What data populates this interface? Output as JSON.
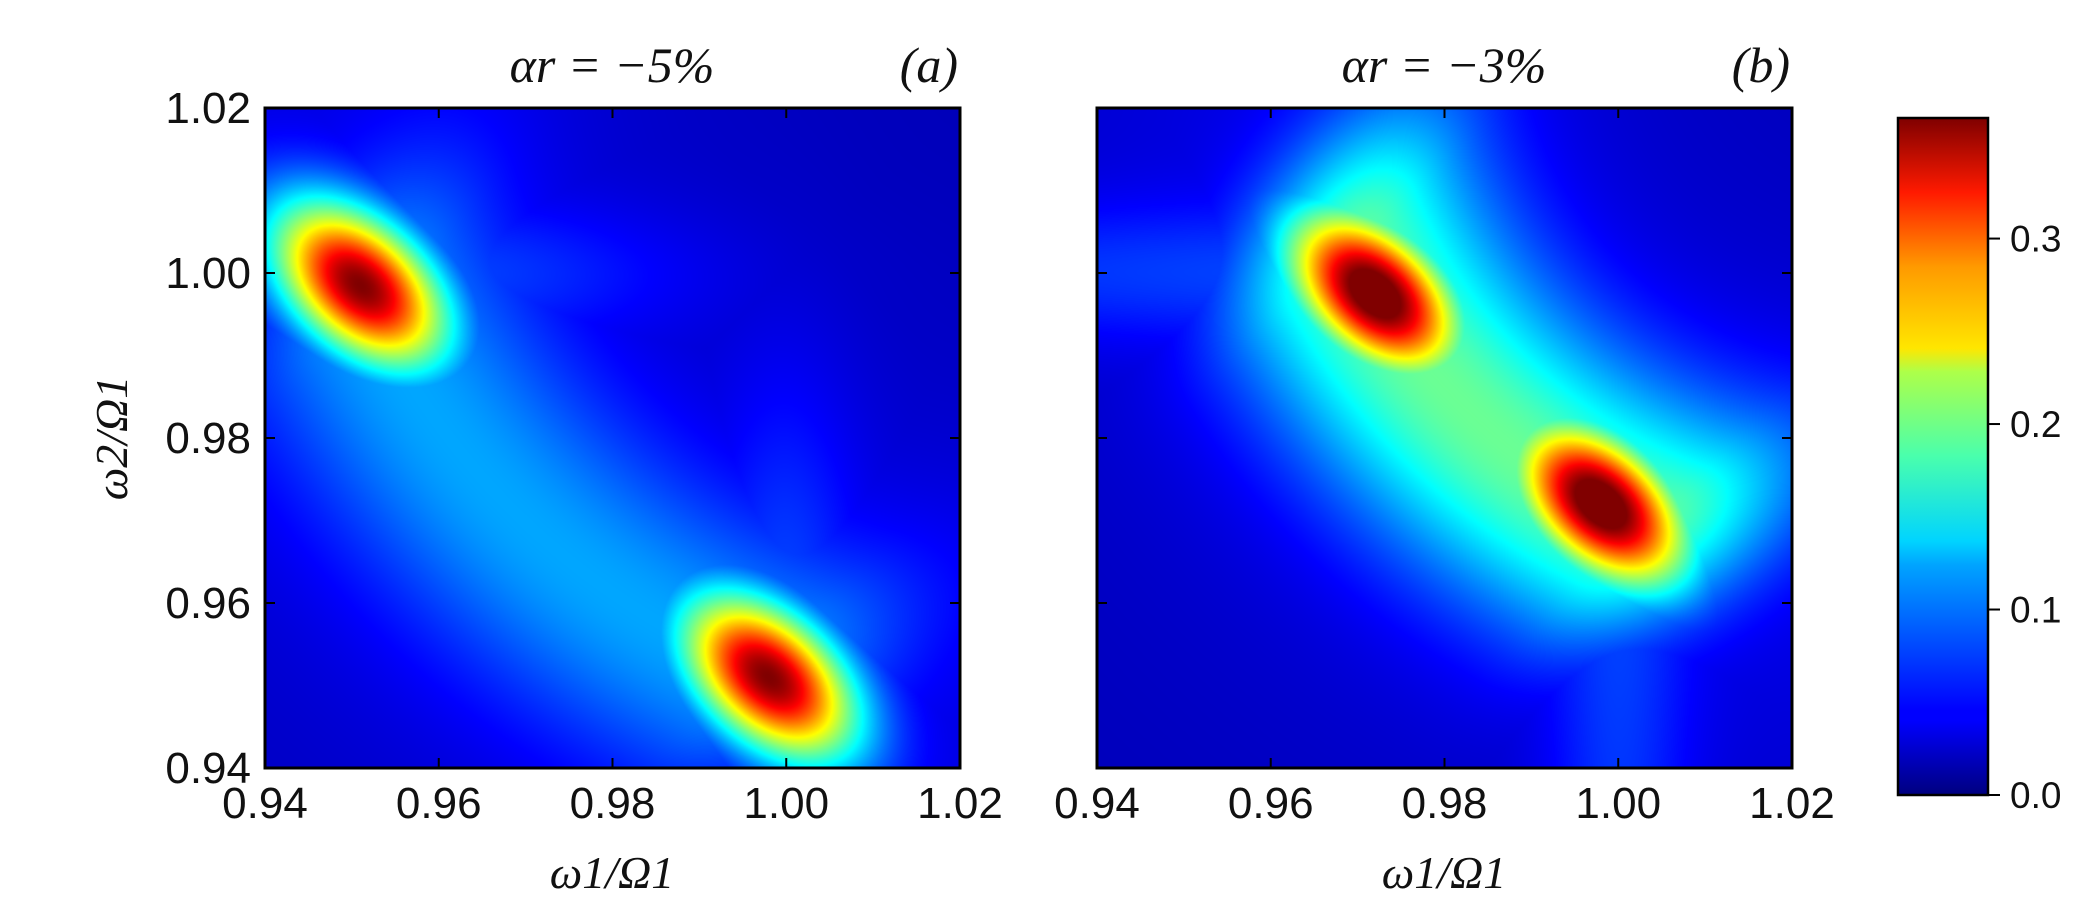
{
  "chart_data": [
    {
      "type": "heatmap",
      "title": "αr = −5%",
      "panel_label": "(a)",
      "xlabel": "ω1/Ω1",
      "ylabel": "ω2/Ω1",
      "xlim": [
        0.94,
        1.02
      ],
      "ylim": [
        0.94,
        1.02
      ],
      "x_ticks": [
        "0.94",
        "0.96",
        "0.98",
        "1.00",
        "1.02"
      ],
      "y_ticks": [
        "0.94",
        "0.96",
        "0.98",
        "1.00",
        "1.02"
      ],
      "peaks": [
        {
          "x": 0.951,
          "y": 0.9985,
          "value": 0.33
        },
        {
          "x": 0.998,
          "y": 0.951,
          "value": 0.33
        }
      ],
      "ridge_level": 0.07,
      "background_level": 0.02
    },
    {
      "type": "heatmap",
      "title": "αr = −3%",
      "panel_label": "(b)",
      "xlabel": "ω1/Ω1",
      "ylabel": "",
      "xlim": [
        0.94,
        1.02
      ],
      "ylim": [
        0.94,
        1.02
      ],
      "x_ticks": [
        "0.94",
        "0.96",
        "0.98",
        "1.00",
        "1.02"
      ],
      "y_ticks": [],
      "peaks": [
        {
          "x": 0.972,
          "y": 0.9975,
          "value": 0.36
        },
        {
          "x": 0.998,
          "y": 0.972,
          "value": 0.36
        }
      ],
      "ridge_level": 0.14,
      "background_level": 0.02
    }
  ],
  "colorbar": {
    "colormap": "jet",
    "vmin": 0.0,
    "vmax": 0.365,
    "ticks": [
      "0.0",
      "0.1",
      "0.2",
      "0.3"
    ]
  }
}
